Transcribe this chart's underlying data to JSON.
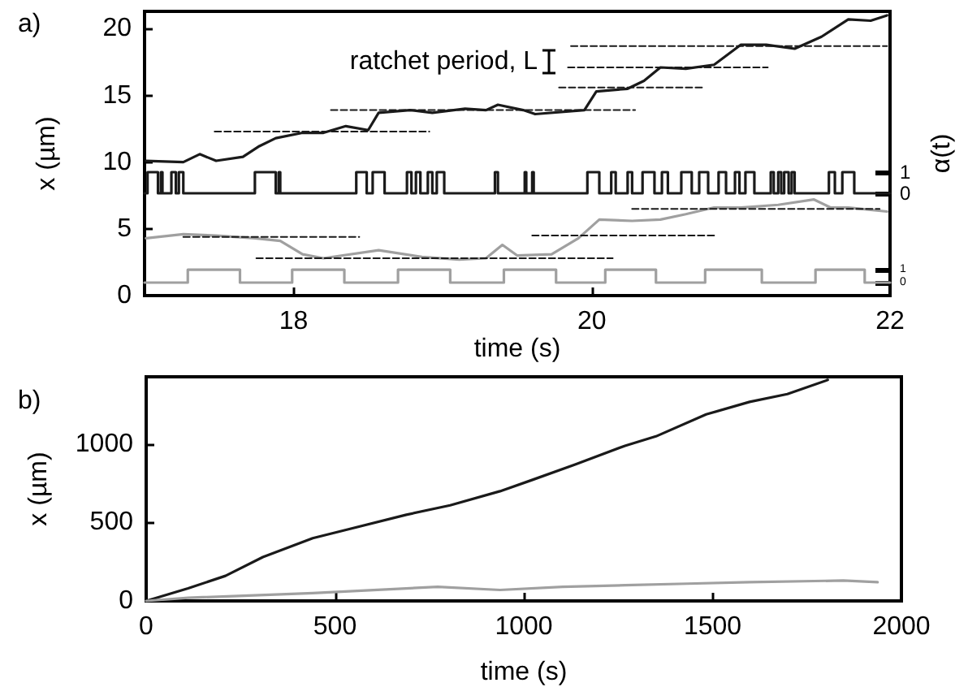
{
  "chart_data": [
    {
      "type": "line",
      "title": "a)",
      "xlabel": "time (s)",
      "ylabel": "x (µm)",
      "y2label": "α(t)",
      "xlim": [
        17,
        22
      ],
      "xticks": [
        18,
        20,
        22
      ],
      "ylim": [
        0,
        21.3
      ],
      "yticks": [
        0,
        5,
        10,
        15,
        20
      ],
      "y2lim": [
        -4.85,
        8.62
      ],
      "y2ticks": [
        0,
        1
      ],
      "y3lim": [
        -1,
        20.9
      ],
      "y3ticks": [
        0,
        1
      ],
      "marker": "none",
      "annotations": [
        "ratchet period, L"
      ],
      "series": [
        {
          "color": "#1a1a1a",
          "x": [
            17.01,
            17.26,
            17.37,
            17.48,
            17.66,
            17.77,
            17.88,
            18.06,
            18.2,
            18.35,
            18.5,
            18.57,
            18.78,
            18.93,
            19.15,
            19.29,
            19.37,
            19.54,
            19.62,
            19.95,
            20.03,
            20.24,
            20.35,
            20.46,
            20.63,
            20.82,
            21.0,
            21.17,
            21.36,
            21.54,
            21.72,
            21.87,
            21.98
          ],
          "values": [
            10.1,
            10.0,
            10.6,
            10.1,
            10.4,
            11.2,
            11.8,
            12.2,
            12.2,
            12.7,
            12.4,
            13.7,
            13.9,
            13.7,
            14.0,
            13.9,
            14.3,
            13.9,
            13.6,
            13.9,
            15.3,
            15.5,
            16.1,
            17.1,
            17.0,
            17.3,
            18.8,
            18.8,
            18.5,
            19.4,
            20.7,
            20.6,
            21.0
          ]
        },
        {
          "color": "#a0a0a0",
          "x": [
            17.01,
            17.26,
            17.48,
            17.74,
            17.91,
            18.06,
            18.2,
            18.57,
            18.86,
            19.11,
            19.29,
            19.4,
            19.5,
            19.73,
            19.91,
            20.05,
            20.27,
            20.46,
            20.63,
            20.82,
            21.0,
            21.25,
            21.49,
            21.6,
            21.72,
            21.98
          ],
          "values": [
            4.3,
            4.6,
            4.5,
            4.3,
            4.1,
            3.1,
            2.8,
            3.4,
            2.9,
            2.7,
            2.8,
            3.8,
            3.0,
            3.1,
            4.3,
            5.7,
            5.6,
            5.7,
            6.1,
            6.6,
            6.6,
            6.8,
            7.2,
            6.6,
            6.6,
            6.3
          ]
        },
        {
          "type": "step",
          "axis": "y2",
          "color": "#1a1a1a",
          "x": [
            17.0,
            17.02,
            17.09,
            17.11,
            17.12,
            17.18,
            17.21,
            17.23,
            17.26,
            17.74,
            17.88,
            17.9,
            17.91,
            18.42,
            18.49,
            18.53,
            18.61,
            18.76,
            18.79,
            18.82,
            18.85,
            18.9,
            18.93,
            18.96,
            19.01,
            19.35,
            19.37,
            19.55,
            19.56,
            19.6,
            19.61,
            19.97,
            20.05,
            20.13,
            20.16,
            20.24,
            20.27,
            20.34,
            20.42,
            20.47,
            20.51,
            20.6,
            20.67,
            20.72,
            20.78,
            20.85,
            20.9,
            20.96,
            20.99,
            21.03,
            21.09,
            21.2,
            21.22,
            21.25,
            21.27,
            21.29,
            21.32,
            21.34,
            21.36,
            21.59,
            21.63,
            21.68,
            21.76,
            22.0
          ],
          "values": [
            0,
            1,
            0,
            1,
            0,
            1,
            0,
            1,
            0,
            1,
            0,
            1,
            0,
            1,
            0,
            1,
            0,
            1,
            0,
            1,
            0,
            1,
            0,
            1,
            0,
            1,
            0,
            1,
            0,
            1,
            0,
            1,
            0,
            1,
            0,
            1,
            0,
            1,
            0,
            1,
            0,
            1,
            0,
            1,
            0,
            1,
            0,
            1,
            0,
            1,
            0,
            1,
            0,
            1,
            0,
            1,
            0,
            1,
            0,
            1,
            0,
            1,
            0,
            0
          ]
        },
        {
          "type": "step",
          "axis": "y3",
          "color": "#a0a0a0",
          "x": [
            17.0,
            17.29,
            17.64,
            17.99,
            18.34,
            18.7,
            19.05,
            19.41,
            19.76,
            20.09,
            20.43,
            20.76,
            21.14,
            21.5,
            21.83,
            22.0
          ],
          "values": [
            0,
            1,
            0,
            1,
            0,
            1,
            0,
            1,
            0,
            1,
            0,
            1,
            0,
            1,
            0,
            0
          ]
        },
        {
          "color": "#1a1a1a",
          "line_style": "dashed",
          "x": [
            17.47,
            18.91
          ],
          "values": [
            12.3,
            12.3
          ]
        },
        {
          "color": "#1a1a1a",
          "line_style": "dashed",
          "x": [
            18.25,
            20.29
          ],
          "values": [
            13.9,
            13.9
          ]
        },
        {
          "color": "#1a1a1a",
          "line_style": "dashed",
          "x": [
            19.78,
            20.74
          ],
          "values": [
            15.6,
            15.6
          ]
        },
        {
          "color": "#1a1a1a",
          "line_style": "dashed",
          "x": [
            19.84,
            21.18
          ],
          "values": [
            17.1,
            17.1
          ]
        },
        {
          "color": "#1a1a1a",
          "line_style": "dashed",
          "x": [
            19.86,
            21.98
          ],
          "values": [
            18.7,
            18.7
          ]
        },
        {
          "color": "#1a1a1a",
          "line_style": "dashed",
          "x": [
            17.26,
            18.44
          ],
          "values": [
            4.4,
            4.4
          ]
        },
        {
          "color": "#1a1a1a",
          "line_style": "dashed",
          "x": [
            17.75,
            20.14
          ],
          "values": [
            2.8,
            2.8
          ]
        },
        {
          "color": "#1a1a1a",
          "line_style": "dashed",
          "x": [
            19.6,
            20.82
          ],
          "values": [
            4.5,
            4.5
          ]
        },
        {
          "color": "#1a1a1a",
          "line_style": "dashed",
          "x": [
            20.27,
            21.93
          ],
          "values": [
            6.5,
            6.5
          ]
        }
      ]
    },
    {
      "type": "line",
      "title": "b)",
      "xlabel": "time (s)",
      "ylabel": "x (µm)",
      "xlim": [
        0,
        2000
      ],
      "xticks": [
        0,
        500,
        1000,
        1500,
        2000
      ],
      "ylim": [
        0,
        1430
      ],
      "yticks": [
        0,
        500,
        1000
      ],
      "marker": "none",
      "series": [
        {
          "color": "#1a1a1a",
          "x": [
            0,
            111,
            210,
            309,
            441,
            540,
            689,
            805,
            937,
            1020,
            1136,
            1268,
            1350,
            1483,
            1598,
            1698,
            1805
          ],
          "values": [
            0,
            80,
            160,
            280,
            400,
            460,
            550,
            610,
            700,
            770,
            870,
            990,
            1050,
            1190,
            1270,
            1320,
            1410
          ]
        },
        {
          "color": "#a0a0a0",
          "x": [
            0,
            111,
            441,
            772,
            937,
            1103,
            1268,
            1433,
            1598,
            1846,
            1937
          ],
          "values": [
            0,
            20,
            50,
            90,
            70,
            90,
            100,
            110,
            120,
            130,
            120
          ]
        }
      ]
    }
  ]
}
